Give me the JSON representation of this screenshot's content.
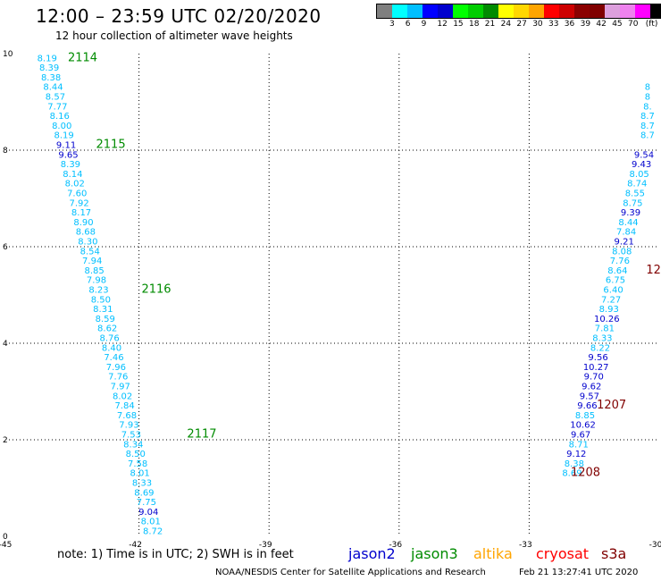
{
  "header": {
    "title": "12:00 – 23:59 UTC 02/20/2020",
    "subtitle": "12 hour collection of altimeter wave heights",
    "legend_colors": [
      "#7f7f7f",
      "#00ffff",
      "#00bfff",
      "#0000ff",
      "#0000cd",
      "#00ff00",
      "#00cd00",
      "#008b00",
      "#ffff00",
      "#ffd700",
      "#ffa500",
      "#ff0000",
      "#cd0000",
      "#8b0000",
      "#800000",
      "#dda0dd",
      "#ee82ee",
      "#ff00ff",
      "#000000"
    ],
    "legend_labels": [
      "3",
      "6",
      "9",
      "12",
      "15",
      "18",
      "21",
      "24",
      "27",
      "30",
      "33",
      "36",
      "39",
      "42",
      "45",
      "70",
      "(ft)"
    ]
  },
  "axes": {
    "x_ticks": [
      "-45",
      "-42",
      "-39",
      "-36",
      "-33",
      "-30"
    ],
    "y_ticks": [
      "0",
      "2",
      "4",
      "6",
      "8",
      "10"
    ]
  },
  "tracks": {
    "t2114": [
      {
        "lon": -44.12,
        "lat": 9.92,
        "v": "8.19"
      },
      {
        "lon": -44.07,
        "lat": 9.72,
        "v": "8.39"
      },
      {
        "lon": -44.03,
        "lat": 9.52,
        "v": "8.38"
      },
      {
        "lon": -43.98,
        "lat": 9.32,
        "v": "8.44"
      },
      {
        "lon": -43.93,
        "lat": 9.12,
        "v": "8.57"
      },
      {
        "lon": -43.88,
        "lat": 8.92,
        "v": "7.77"
      },
      {
        "lon": -43.83,
        "lat": 8.72,
        "v": "8.16"
      },
      {
        "lon": -43.78,
        "lat": 8.52,
        "v": "8.00"
      },
      {
        "lon": -43.73,
        "lat": 8.32,
        "v": "8.19"
      },
      {
        "lon": -43.68,
        "lat": 8.12,
        "v": "9.11"
      },
      {
        "lon": -43.63,
        "lat": 7.92,
        "v": "9.65"
      }
    ],
    "t2115": [
      {
        "lon": -43.58,
        "lat": 7.72,
        "v": "8.39"
      },
      {
        "lon": -43.53,
        "lat": 7.52,
        "v": "8.14"
      },
      {
        "lon": -43.48,
        "lat": 7.32,
        "v": "8.02"
      },
      {
        "lon": -43.43,
        "lat": 7.12,
        "v": "7.60"
      },
      {
        "lon": -43.38,
        "lat": 6.92,
        "v": "7.92"
      },
      {
        "lon": -43.33,
        "lat": 6.72,
        "v": "8.17"
      },
      {
        "lon": -43.28,
        "lat": 6.52,
        "v": "8.90"
      },
      {
        "lon": -43.23,
        "lat": 6.32,
        "v": "8.68"
      },
      {
        "lon": -43.18,
        "lat": 6.12,
        "v": "8.30"
      },
      {
        "lon": -43.13,
        "lat": 5.92,
        "v": "8.54"
      },
      {
        "lon": -43.08,
        "lat": 5.72,
        "v": "7.94"
      },
      {
        "lon": -43.03,
        "lat": 5.52,
        "v": "8.85"
      },
      {
        "lon": -42.98,
        "lat": 5.32,
        "v": "7.98"
      }
    ],
    "t2116": [
      {
        "lon": -42.93,
        "lat": 5.12,
        "v": "8.23"
      },
      {
        "lon": -42.88,
        "lat": 4.92,
        "v": "8.50"
      },
      {
        "lon": -42.83,
        "lat": 4.72,
        "v": "8.31"
      },
      {
        "lon": -42.78,
        "lat": 4.52,
        "v": "8.59"
      },
      {
        "lon": -42.73,
        "lat": 4.32,
        "v": "8.62"
      },
      {
        "lon": -42.68,
        "lat": 4.12,
        "v": "8.76"
      },
      {
        "lon": -42.63,
        "lat": 3.92,
        "v": "8.40"
      },
      {
        "lon": -42.58,
        "lat": 3.72,
        "v": "7.46"
      },
      {
        "lon": -42.53,
        "lat": 3.52,
        "v": "7.96"
      },
      {
        "lon": -42.48,
        "lat": 3.32,
        "v": "7.76"
      },
      {
        "lon": -42.43,
        "lat": 3.12,
        "v": "7.97"
      },
      {
        "lon": -42.38,
        "lat": 2.92,
        "v": "8.02"
      },
      {
        "lon": -42.33,
        "lat": 2.72,
        "v": "7.84"
      },
      {
        "lon": -42.28,
        "lat": 2.52,
        "v": "7.68"
      },
      {
        "lon": -42.23,
        "lat": 2.32,
        "v": "7.93"
      },
      {
        "lon": -42.18,
        "lat": 2.12,
        "v": "7.53"
      }
    ],
    "t2117": [
      {
        "lon": -42.13,
        "lat": 1.92,
        "v": "8.34"
      },
      {
        "lon": -42.08,
        "lat": 1.72,
        "v": "8.50"
      },
      {
        "lon": -42.03,
        "lat": 1.52,
        "v": "7.58"
      },
      {
        "lon": -41.98,
        "lat": 1.32,
        "v": "8.01"
      },
      {
        "lon": -41.93,
        "lat": 1.12,
        "v": "8.33"
      },
      {
        "lon": -41.88,
        "lat": 0.92,
        "v": "8.69"
      },
      {
        "lon": -41.83,
        "lat": 0.72,
        "v": "7.75"
      },
      {
        "lon": -41.78,
        "lat": 0.52,
        "v": "9.04"
      },
      {
        "lon": -41.73,
        "lat": 0.32,
        "v": "8.01"
      },
      {
        "lon": -41.68,
        "lat": 0.12,
        "v": "8.72"
      }
    ],
    "t1207": [
      {
        "lon": -30.27,
        "lat": 9.32,
        "v": "8"
      },
      {
        "lon": -30.27,
        "lat": 9.12,
        "v": "8"
      },
      {
        "lon": -30.27,
        "lat": 8.92,
        "v": "8."
      },
      {
        "lon": -30.27,
        "lat": 8.72,
        "v": "8.7"
      },
      {
        "lon": -30.27,
        "lat": 8.52,
        "v": "8.7"
      },
      {
        "lon": -30.27,
        "lat": 8.32,
        "v": "8.7"
      },
      {
        "lon": -30.35,
        "lat": 7.92,
        "v": "9.54"
      },
      {
        "lon": -30.41,
        "lat": 7.72,
        "v": "9.43"
      },
      {
        "lon": -30.46,
        "lat": 7.52,
        "v": "8.05"
      },
      {
        "lon": -30.51,
        "lat": 7.32,
        "v": "8.74"
      },
      {
        "lon": -30.56,
        "lat": 7.12,
        "v": "8.55"
      },
      {
        "lon": -30.61,
        "lat": 6.92,
        "v": "8.75"
      },
      {
        "lon": -30.66,
        "lat": 6.72,
        "v": "9.39"
      },
      {
        "lon": -30.71,
        "lat": 6.52,
        "v": "8.44"
      },
      {
        "lon": -30.76,
        "lat": 6.32,
        "v": "7.84"
      },
      {
        "lon": -30.81,
        "lat": 6.12,
        "v": "9.21"
      },
      {
        "lon": -30.86,
        "lat": 5.92,
        "v": "8.08"
      },
      {
        "lon": -30.91,
        "lat": 5.72,
        "v": "7.76"
      },
      {
        "lon": -30.96,
        "lat": 5.52,
        "v": "8.64"
      },
      {
        "lon": -31.01,
        "lat": 5.32,
        "v": "6.75"
      },
      {
        "lon": -31.06,
        "lat": 5.12,
        "v": "6.40"
      },
      {
        "lon": -31.11,
        "lat": 4.92,
        "v": "7.27"
      },
      {
        "lon": -31.16,
        "lat": 4.72,
        "v": "8.93"
      },
      {
        "lon": -31.21,
        "lat": 4.52,
        "v": "10.26"
      },
      {
        "lon": -31.26,
        "lat": 4.32,
        "v": "7.81"
      },
      {
        "lon": -31.31,
        "lat": 4.12,
        "v": "8.33"
      },
      {
        "lon": -31.36,
        "lat": 3.92,
        "v": "8.22"
      },
      {
        "lon": -31.41,
        "lat": 3.72,
        "v": "9.56"
      },
      {
        "lon": -31.46,
        "lat": 3.52,
        "v": "10.27"
      },
      {
        "lon": -31.51,
        "lat": 3.32,
        "v": "9.70"
      },
      {
        "lon": -31.56,
        "lat": 3.12,
        "v": "9.62"
      },
      {
        "lon": -31.61,
        "lat": 2.92,
        "v": "9.57"
      },
      {
        "lon": -31.66,
        "lat": 2.72,
        "v": "9.66"
      }
    ],
    "t1208": [
      {
        "lon": -31.71,
        "lat": 2.52,
        "v": "8.85"
      },
      {
        "lon": -31.76,
        "lat": 2.32,
        "v": "10.62"
      },
      {
        "lon": -31.81,
        "lat": 2.12,
        "v": "9.67"
      },
      {
        "lon": -31.86,
        "lat": 1.92,
        "v": "8.71"
      },
      {
        "lon": -31.91,
        "lat": 1.72,
        "v": "9.12"
      },
      {
        "lon": -31.96,
        "lat": 1.52,
        "v": "8.38"
      },
      {
        "lon": -32.01,
        "lat": 1.32,
        "v": "8.69"
      }
    ]
  },
  "track_labels": [
    {
      "text": "2114",
      "lon": -43.3,
      "lat": 9.92,
      "color": "#008b00"
    },
    {
      "text": "2115",
      "lon": -42.65,
      "lat": 8.12,
      "color": "#008b00"
    },
    {
      "text": "2116",
      "lon": -41.6,
      "lat": 5.12,
      "color": "#008b00"
    },
    {
      "text": "2117",
      "lon": -40.55,
      "lat": 2.12,
      "color": "#008b00"
    },
    {
      "text": "12",
      "lon": -30.13,
      "lat": 5.52,
      "color": "#800000"
    },
    {
      "text": "1207",
      "lon": -31.1,
      "lat": 2.72,
      "color": "#800000"
    },
    {
      "text": "1208",
      "lon": -31.7,
      "lat": 1.32,
      "color": "#800000"
    }
  ],
  "footer": {
    "note": "note:  1) Time is in UTC;  2) SWH is in feet",
    "satellites": [
      {
        "name": "jason2",
        "color": "#0000cd"
      },
      {
        "name": "jason3",
        "color": "#008b00"
      },
      {
        "name": "altika",
        "color": "#ffa500"
      },
      {
        "name": "cryosat",
        "color": "#ff0000"
      },
      {
        "name": "s3a",
        "color": "#800000"
      }
    ],
    "credit": "NOAA/NESDIS Center for Satellite Applications and Research",
    "timestamp": "Feb 21 13:27:41 UTC 2020"
  }
}
